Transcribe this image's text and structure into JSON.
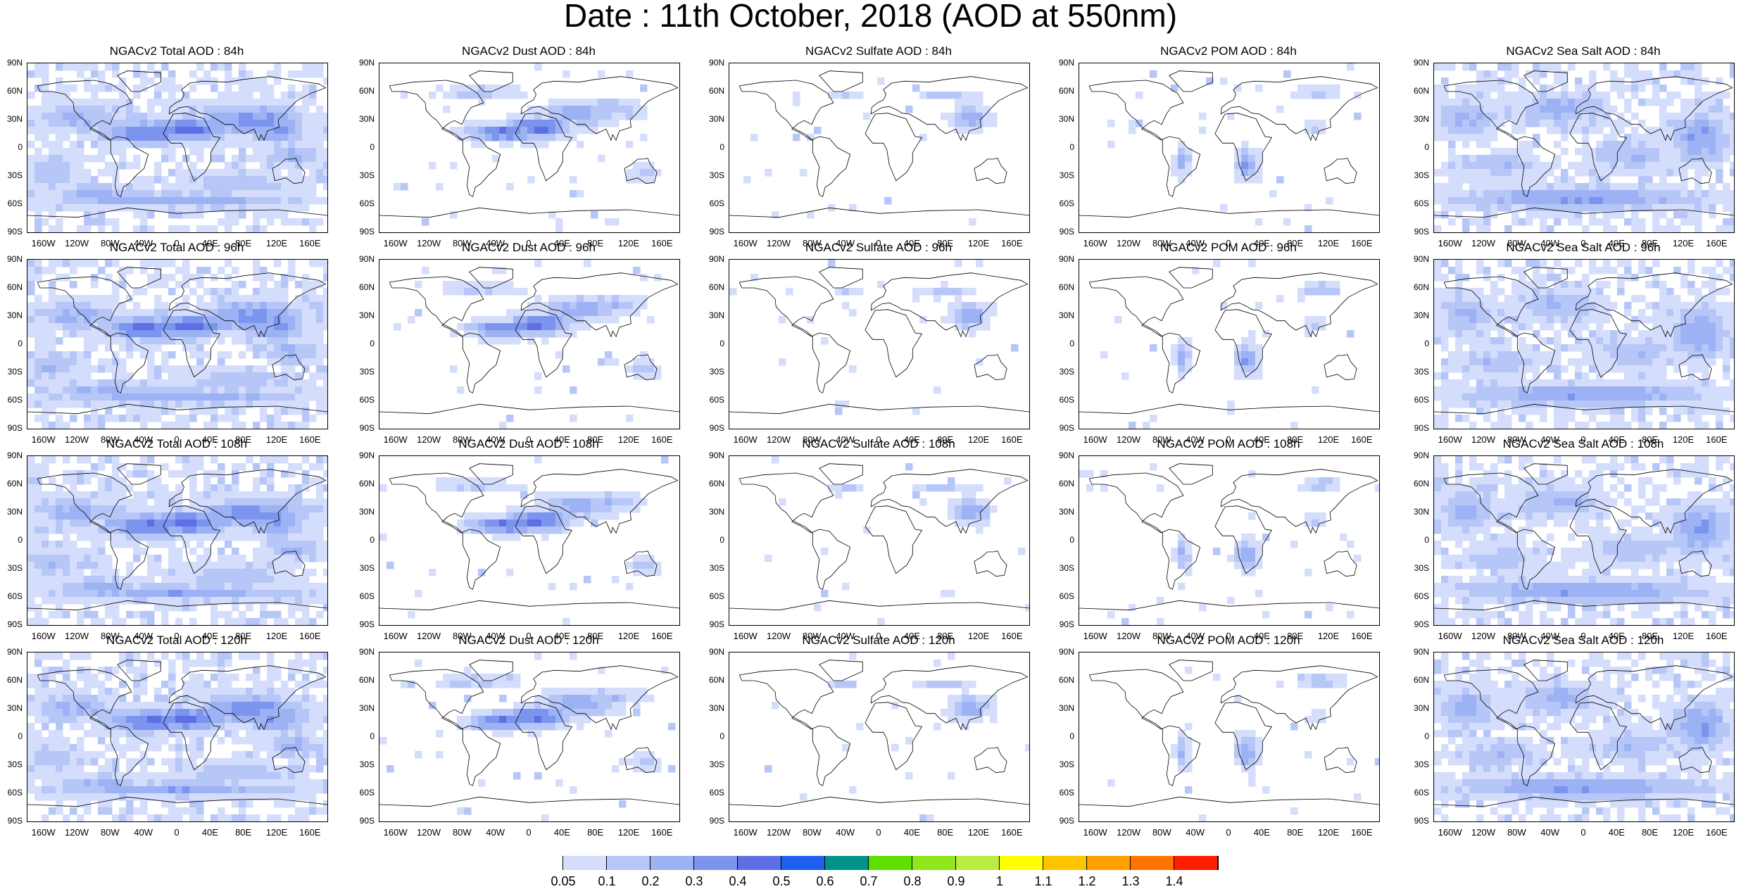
{
  "title": "Date : 11th October, 2018 (AOD at 550nm)",
  "panels": [
    [
      "NGACv2 Total AOD : 84h",
      "NGACv2 Dust AOD : 84h",
      "NGACv2 Sulfate AOD : 84h",
      "NGACv2 POM AOD : 84h",
      "NGACv2 Sea Salt AOD : 84h"
    ],
    [
      "NGACv2 Total AOD : 96h",
      "NGACv2 Dust AOD : 96h",
      "NGACv2 Sulfate AOD : 96h",
      "NGACv2 POM AOD : 96h",
      "NGACv2 Sea Salt AOD : 96h"
    ],
    [
      "NGACv2 Total AOD : 108h",
      "NGACv2 Dust AOD : 108h",
      "NGACv2 Sulfate AOD : 108h",
      "NGACv2 POM AOD : 108h",
      "NGACv2 Sea Salt AOD : 108h"
    ],
    [
      "NGACv2 Total AOD : 120h",
      "NGACv2 Dust AOD : 120h",
      "NGACv2 Sulfate AOD : 120h",
      "NGACv2 POM AOD : 120h",
      "NGACv2 Sea Salt  AOD : 120h"
    ]
  ],
  "lat_ticks": [
    "90N",
    "60N",
    "30N",
    "0",
    "30S",
    "60S",
    "90S"
  ],
  "lon_ticks": [
    "160W",
    "120W",
    "80W",
    "40W",
    "0",
    "40E",
    "80E",
    "120E",
    "160E"
  ],
  "colorbar": {
    "labels": [
      "0.05",
      "0.1",
      "0.2",
      "0.3",
      "0.4",
      "0.5",
      "0.6",
      "0.7",
      "0.8",
      "0.9",
      "1",
      "1.1",
      "1.2",
      "1.3",
      "1.4"
    ],
    "colors": [
      "#ffffff",
      "#d4ddfb",
      "#b6c6f7",
      "#9cb2f4",
      "#7b95ee",
      "#5e6fe6",
      "#1f5ff0",
      "#00938a",
      "#5ee000",
      "#8fe61a",
      "#b9ee40",
      "#ffff00",
      "#ffc400",
      "#ff9f00",
      "#ff7400",
      "#ff1f00"
    ]
  }
}
